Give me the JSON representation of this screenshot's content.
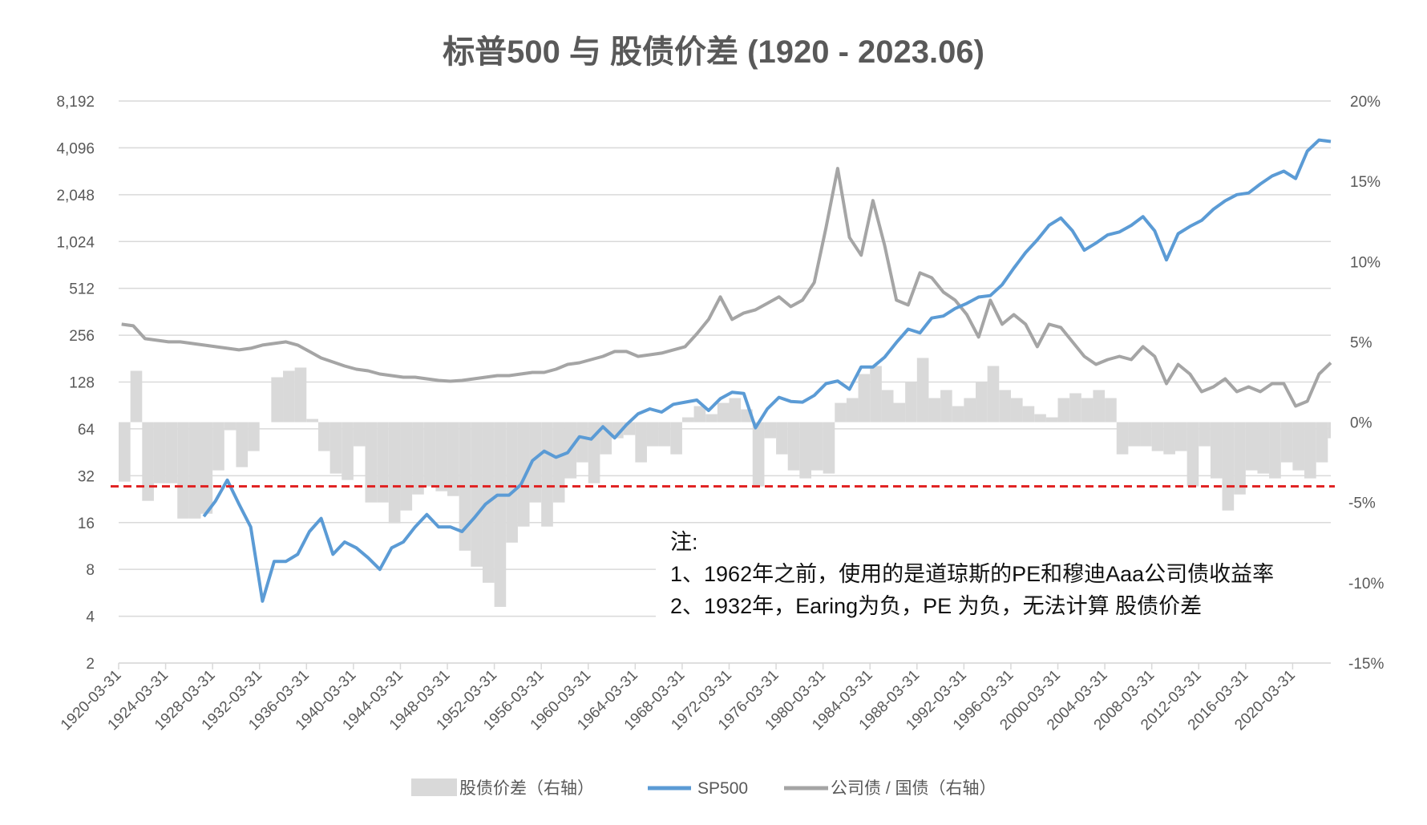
{
  "chart_data": {
    "type": "line",
    "title": "标普500 与 股债价差 (1920 - 2023.06)",
    "x": [
      1920,
      1921,
      1922,
      1923,
      1924,
      1925,
      1926,
      1927,
      1928,
      1929,
      1930,
      1931,
      1932,
      1933,
      1934,
      1935,
      1936,
      1937,
      1938,
      1939,
      1940,
      1941,
      1942,
      1943,
      1944,
      1945,
      1946,
      1947,
      1948,
      1949,
      1950,
      1951,
      1952,
      1953,
      1954,
      1955,
      1956,
      1957,
      1958,
      1959,
      1960,
      1961,
      1962,
      1963,
      1964,
      1965,
      1966,
      1967,
      1968,
      1969,
      1970,
      1971,
      1972,
      1973,
      1974,
      1975,
      1976,
      1977,
      1978,
      1979,
      1980,
      1981,
      1982,
      1983,
      1984,
      1985,
      1986,
      1987,
      1988,
      1989,
      1990,
      1991,
      1992,
      1993,
      1994,
      1995,
      1996,
      1997,
      1998,
      1999,
      2000,
      2001,
      2002,
      2003,
      2004,
      2005,
      2006,
      2007,
      2008,
      2009,
      2010,
      2011,
      2012,
      2013,
      2014,
      2015,
      2016,
      2017,
      2018,
      2019,
      2020,
      2021,
      2022,
      2023
    ],
    "x_tick_labels": [
      "1920-03-31",
      "1924-03-31",
      "1928-03-31",
      "1932-03-31",
      "1936-03-31",
      "1940-03-31",
      "1944-03-31",
      "1948-03-31",
      "1952-03-31",
      "1956-03-31",
      "1960-03-31",
      "1964-03-31",
      "1968-03-31",
      "1972-03-31",
      "1976-03-31",
      "1980-03-31",
      "1984-03-31",
      "1988-03-31",
      "1992-03-31",
      "1996-03-31",
      "2000-03-31",
      "2004-03-31",
      "2008-03-31",
      "2012-03-31",
      "2016-03-31",
      "2020-03-31"
    ],
    "left_axis": {
      "scale": "log2",
      "ylim": [
        2,
        8192
      ],
      "tick_labels": [
        "8,192",
        "4,096",
        "2,048",
        "1,024",
        "512",
        "256",
        "128",
        "64",
        "32",
        "16",
        "8",
        "4",
        "2"
      ]
    },
    "right_axis": {
      "ylim": [
        -15,
        20
      ],
      "unit": "%",
      "tick_labels": [
        "20%",
        "15%",
        "10%",
        "5%",
        "0%",
        "-5%",
        "-10%",
        "-15%"
      ]
    },
    "grid": true,
    "legend_position": "bottom",
    "series": [
      {
        "name": "股债价差（右轴）",
        "type": "bar",
        "axis": "right",
        "color": "#d9d9d9",
        "values": [
          -3.7,
          3.2,
          -4.9,
          -3.8,
          -3.8,
          -6.0,
          -6.0,
          -5.7,
          -3.0,
          -0.5,
          -2.8,
          -1.8,
          null,
          2.8,
          3.2,
          3.4,
          0.2,
          -1.8,
          -3.2,
          -3.6,
          -1.5,
          -5.0,
          -5.0,
          -6.3,
          -5.5,
          -4.5,
          -4.0,
          -4.3,
          -4.6,
          -8.0,
          -9.0,
          -10.0,
          -11.5,
          -7.5,
          -6.5,
          -5.0,
          -6.5,
          -5.0,
          -3.5,
          -2.5,
          -3.8,
          -2.0,
          -1.0,
          -0.8,
          -2.5,
          -1.5,
          -1.5,
          -2.0,
          0.3,
          1.0,
          0.5,
          1.2,
          1.5,
          0.8,
          -4.0,
          -1.0,
          -2.0,
          -3.0,
          -3.5,
          -3.0,
          -3.2,
          1.2,
          1.5,
          3.0,
          3.5,
          2.0,
          1.2,
          2.5,
          4.0,
          1.5,
          2.0,
          1.0,
          1.5,
          2.5,
          3.5,
          2.0,
          1.5,
          1.0,
          0.5,
          0.3,
          1.5,
          1.8,
          1.5,
          2.0,
          1.5,
          -2.0,
          -1.5,
          -1.5,
          -1.8,
          -2.0,
          -1.8,
          -4.0,
          -1.5,
          -3.5,
          -5.5,
          -4.5,
          -3.0,
          -3.2,
          -3.5,
          -2.5,
          -3.0,
          -3.5,
          -2.5,
          -1.0
        ]
      },
      {
        "name": "SP500",
        "type": "line",
        "axis": "left",
        "color": "#5b9bd5",
        "values": [
          null,
          null,
          null,
          null,
          null,
          null,
          null,
          17.5,
          22,
          30,
          21,
          15,
          5,
          9,
          9,
          10,
          14,
          17,
          10,
          12,
          11,
          9.5,
          8,
          11,
          12,
          15,
          18,
          15,
          15,
          14,
          17,
          21,
          24,
          24,
          28,
          40,
          46,
          42,
          45,
          57,
          55,
          66,
          56,
          68,
          80,
          86,
          82,
          92,
          95,
          98,
          84,
          100,
          110,
          108,
          65,
          86,
          102,
          96,
          95,
          105,
          125,
          130,
          115,
          160,
          160,
          185,
          230,
          280,
          265,
          330,
          340,
          380,
          410,
          450,
          460,
          540,
          690,
          870,
          1050,
          1300,
          1450,
          1200,
          900,
          1000,
          1130,
          1180,
          1300,
          1480,
          1200,
          780,
          1150,
          1280,
          1400,
          1650,
          1870,
          2050,
          2100,
          2400,
          2700,
          2900,
          2600,
          3900,
          4600,
          4500
        ]
      },
      {
        "name": "公司债 / 国债（右轴）",
        "type": "line",
        "axis": "right",
        "color": "#a5a5a5",
        "values": [
          6.1,
          6.0,
          5.2,
          5.1,
          5.0,
          5.0,
          4.9,
          4.8,
          4.7,
          4.6,
          4.5,
          4.6,
          4.8,
          4.9,
          5.0,
          4.8,
          4.4,
          4.0,
          3.75,
          3.5,
          3.3,
          3.2,
          3.0,
          2.9,
          2.8,
          2.8,
          2.7,
          2.6,
          2.55,
          2.6,
          2.7,
          2.8,
          2.9,
          2.9,
          3.0,
          3.1,
          3.1,
          3.3,
          3.6,
          3.7,
          3.9,
          4.1,
          4.4,
          4.4,
          4.1,
          4.2,
          4.3,
          4.5,
          4.7,
          5.5,
          6.4,
          7.8,
          6.4,
          6.8,
          7.0,
          7.4,
          7.8,
          7.2,
          7.6,
          8.7,
          12.1,
          15.8,
          11.5,
          10.4,
          13.8,
          11.0,
          7.6,
          7.3,
          9.3,
          9.0,
          8.1,
          7.6,
          6.7,
          5.3,
          7.6,
          6.1,
          6.7,
          6.1,
          4.7,
          6.1,
          5.9,
          5.0,
          4.1,
          3.6,
          3.9,
          4.1,
          3.9,
          4.7,
          4.1,
          2.4,
          3.6,
          3.0,
          1.9,
          2.2,
          2.7,
          1.9,
          2.2,
          1.9,
          2.4,
          2.4,
          1.0,
          1.3,
          3.0,
          3.7
        ]
      }
    ],
    "reference_line": {
      "axis": "right",
      "value": -4,
      "color": "#e02020",
      "style": "dashed"
    },
    "annotation": {
      "heading": "注:",
      "lines": [
        "1、1962年之前，使用的是道琼斯的PE和穆迪Aaa公司债收益率",
        "2、1932年，Earing为负，PE 为负，无法计算 股债价差"
      ]
    }
  }
}
